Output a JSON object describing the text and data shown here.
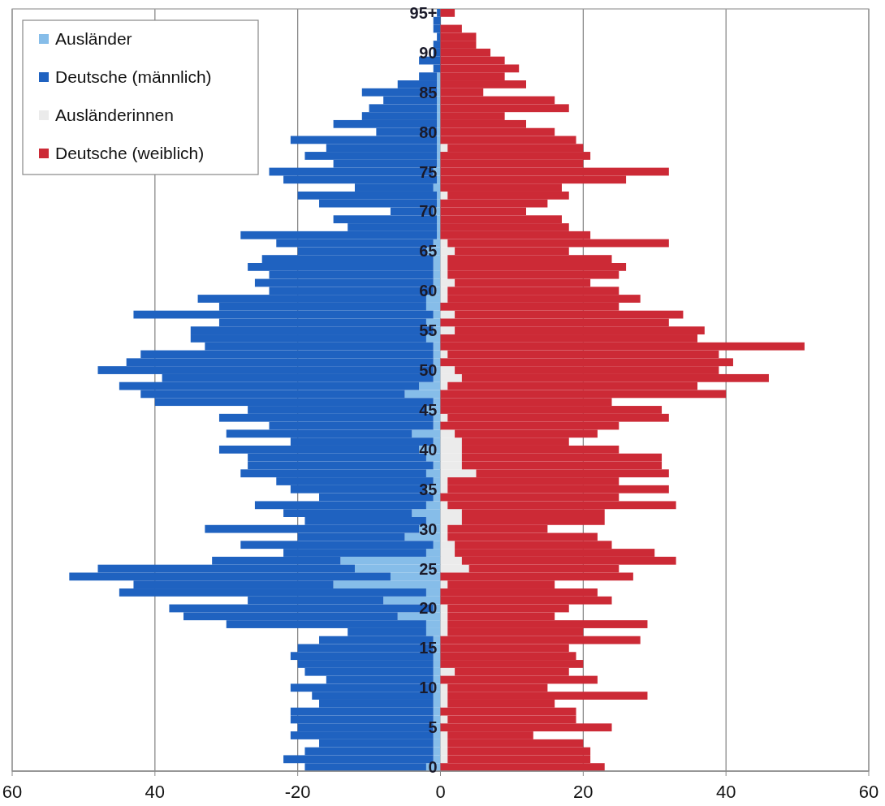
{
  "chart_data": {
    "type": "bar",
    "orientation": "horizontal",
    "stacked": true,
    "categories": [
      "95+",
      null,
      null,
      null,
      null,
      "90",
      null,
      null,
      null,
      null,
      "85",
      null,
      null,
      null,
      null,
      "80",
      null,
      null,
      null,
      null,
      "75",
      null,
      null,
      null,
      null,
      "70",
      null,
      null,
      null,
      null,
      "65",
      null,
      null,
      null,
      null,
      "60",
      null,
      null,
      null,
      null,
      "55",
      null,
      null,
      null,
      null,
      "50",
      null,
      null,
      null,
      null,
      "45",
      null,
      null,
      null,
      null,
      "40",
      null,
      null,
      null,
      null,
      "35",
      null,
      null,
      null,
      null,
      "30",
      null,
      null,
      null,
      null,
      "25",
      null,
      null,
      null,
      null,
      "20",
      null,
      null,
      null,
      null,
      "15",
      null,
      null,
      null,
      null,
      "10",
      null,
      null,
      null,
      null,
      "5",
      null,
      null,
      null,
      null,
      "0"
    ],
    "series": [
      {
        "name": "Ausländer",
        "color": "#86bde9",
        "values": [
          0,
          0,
          0,
          0,
          0,
          0,
          0,
          0,
          -0.5,
          -0.5,
          -0.5,
          -0.5,
          -0.5,
          -0.5,
          -0.5,
          -0.5,
          -0.5,
          -0.5,
          -0.5,
          -0.5,
          -1,
          -0.5,
          -1,
          -0.5,
          -0.5,
          -1,
          -0.5,
          -0.5,
          -0.5,
          -1,
          -2,
          -1,
          -1,
          -1,
          -1,
          -1,
          -2,
          -2,
          -1,
          -2,
          -1,
          -2,
          -1,
          -1,
          -1,
          -1,
          -1,
          -3,
          -5,
          -1,
          -2,
          -1,
          -1,
          -4,
          -1,
          -3,
          -2,
          -1,
          -2,
          -1,
          -2,
          -1,
          -2,
          -4,
          -2,
          -3,
          -5,
          -1,
          -2,
          -14,
          -12,
          -7,
          -15,
          -2,
          -8,
          -1,
          -6,
          -2,
          -2,
          -1,
          -1,
          -1,
          -1,
          -1,
          -1,
          -1,
          -1,
          -1,
          -1,
          -1,
          -1,
          -1,
          -1,
          -1,
          -1,
          -2
        ]
      },
      {
        "name": "Deutsche (männlich)",
        "color": "#1f62c0",
        "values": [
          -0.5,
          -1,
          -1,
          -0.5,
          -1,
          -1,
          -3,
          -1,
          -2.5,
          -5.5,
          -10.5,
          -7.5,
          -9.5,
          -10.5,
          -14.5,
          -8.5,
          -20.5,
          -15.5,
          -18.5,
          -14.5,
          -23,
          -21.5,
          -11,
          -19.5,
          -16.5,
          -6,
          -14.5,
          -12.5,
          -27.5,
          -22,
          -18,
          -24,
          -26,
          -23,
          -25,
          -23,
          -32,
          -29,
          -42,
          -29,
          -34,
          -33,
          -32,
          -41,
          -43,
          -47,
          -38,
          -42,
          -37,
          -39,
          -25,
          -30,
          -23,
          -26,
          -20,
          -28,
          -25,
          -26,
          -26,
          -22,
          -19,
          -16,
          -24,
          -18,
          -17,
          -30,
          -15,
          -27,
          -20,
          -18,
          -36,
          -45,
          -28,
          -43,
          -19,
          -37,
          -30,
          -28,
          -11,
          -16,
          -19,
          -20,
          -19,
          -18,
          -15,
          -20,
          -17,
          -16,
          -20,
          -20,
          -19,
          -20,
          -16,
          -18,
          -21,
          -17
        ]
      },
      {
        "name": "Ausländerinnen",
        "color": "#ebebeb",
        "values": [
          0,
          0,
          0,
          0,
          0,
          0,
          0,
          0,
          0,
          0,
          0,
          0,
          0,
          0,
          0,
          0,
          0,
          1,
          0,
          0,
          0,
          0,
          0,
          1,
          0,
          0,
          0,
          0,
          0,
          1,
          2,
          1,
          1,
          1,
          2,
          1,
          1,
          0,
          2,
          0,
          2,
          0,
          0,
          1,
          0,
          2,
          3,
          1,
          0,
          0,
          0,
          1,
          0,
          2,
          3,
          3,
          3,
          3,
          5,
          1,
          1,
          0,
          1,
          3,
          3,
          1,
          1,
          2,
          2,
          3,
          4,
          0,
          1,
          0,
          0,
          1,
          1,
          1,
          1,
          0,
          0,
          0,
          0,
          2,
          0,
          1,
          1,
          1,
          0,
          1,
          0,
          1,
          1,
          1,
          1,
          0
        ]
      },
      {
        "name": "Deutsche (weiblich)",
        "color": "#cc2a36",
        "values": [
          2,
          0,
          3,
          5,
          5,
          7,
          9,
          11,
          9,
          12,
          6,
          16,
          18,
          9,
          12,
          16,
          19,
          19,
          21,
          20,
          32,
          26,
          17,
          17,
          15,
          12,
          17,
          18,
          21,
          31,
          16,
          23,
          25,
          24,
          19,
          24,
          27,
          25,
          32,
          32,
          35,
          36,
          51,
          38,
          41,
          37,
          43,
          35,
          40,
          24,
          31,
          31,
          25,
          20,
          15,
          22,
          28,
          28,
          27,
          24,
          31,
          25,
          32,
          20,
          20,
          14,
          21,
          22,
          28,
          30,
          21,
          27,
          15,
          22,
          24,
          17,
          15,
          28,
          19,
          28,
          18,
          19,
          20,
          16,
          22,
          14,
          28,
          15,
          19,
          18,
          24,
          12,
          19,
          20,
          20,
          23
        ]
      }
    ],
    "xlim": [
      -60,
      60
    ],
    "xticks": [
      {
        "value": -60,
        "label": "60"
      },
      {
        "value": -40,
        "label": "40"
      },
      -20,
      0,
      20,
      40,
      {
        "value": 60,
        "label": "60"
      }
    ],
    "grid": "x",
    "legend": "top left"
  }
}
